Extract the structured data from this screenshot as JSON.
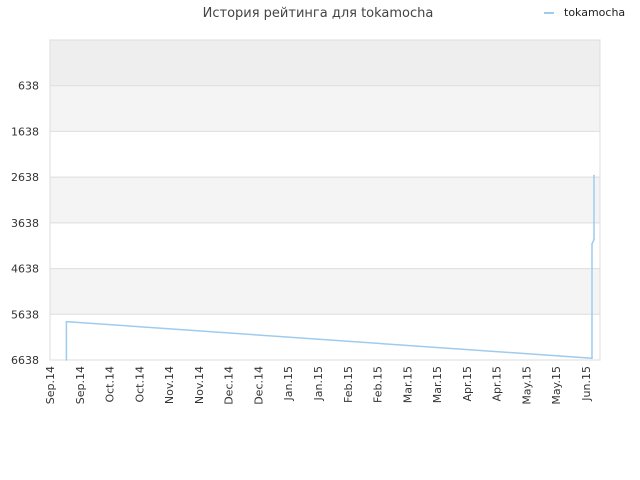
{
  "chart_data": {
    "type": "line",
    "title": "История рейтинга для tokamocha",
    "xlabel": "",
    "ylabel": "",
    "legend_position": "top-right",
    "grid": true,
    "y_inverted": true,
    "ylim": [
      6638,
      -362
    ],
    "yticks": [
      638,
      1638,
      2638,
      3638,
      4638,
      5638,
      6638
    ],
    "xticks": [
      "Sep.14",
      "Sep.14",
      "Oct.14",
      "Oct.14",
      "Nov.14",
      "Nov.14",
      "Dec.14",
      "Dec.14",
      "Jan.15",
      "Jan.15",
      "Feb.15",
      "Feb.15",
      "Mar.15",
      "Mar.15",
      "Apr.15",
      "Apr.15",
      "May.15",
      "May.15",
      "Jun.15"
    ],
    "series": [
      {
        "name": "tokamocha",
        "color": "#9ecbee",
        "points": [
          {
            "x": 0.55,
            "y": 6638
          },
          {
            "x": 0.55,
            "y": 5800
          },
          {
            "x": 0.6,
            "y": 5800
          },
          {
            "x": 18.2,
            "y": 6600
          },
          {
            "x": 18.2,
            "y": 4100
          },
          {
            "x": 18.27,
            "y": 4000
          },
          {
            "x": 18.27,
            "y": 2600
          }
        ]
      }
    ]
  }
}
